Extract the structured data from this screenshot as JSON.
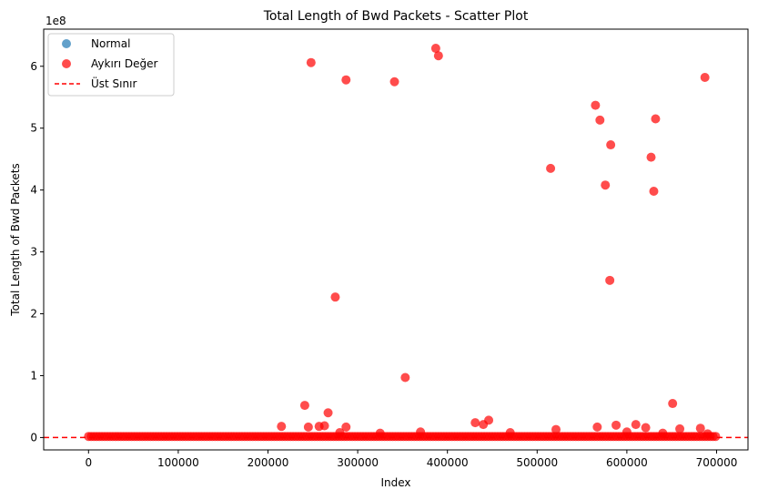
{
  "chart_data": {
    "type": "scatter",
    "title": "Total Length of Bwd Packets - Scatter Plot",
    "xlabel": "Index",
    "ylabel": "Total Length of Bwd Packets",
    "y_offset_label": "1e8",
    "y_scale": 100000000,
    "xlim": [
      -50000,
      735000
    ],
    "ylim": [
      -20000000,
      660000000
    ],
    "x_ticks": [
      0,
      100000,
      200000,
      300000,
      400000,
      500000,
      600000,
      700000
    ],
    "x_tick_labels": [
      "0",
      "100000",
      "200000",
      "300000",
      "400000",
      "500000",
      "600000",
      "700000"
    ],
    "y_ticks": [
      0,
      100000000,
      200000000,
      300000000,
      400000000,
      500000000,
      600000000
    ],
    "y_tick_labels": [
      "0",
      "1",
      "2",
      "3",
      "4",
      "5",
      "6"
    ],
    "grid": false,
    "legend_position": "upper-left",
    "colors": {
      "normal": "#1f77b4",
      "outlier": "#ff0000",
      "limit": "#ff0000"
    },
    "series": [
      {
        "name": "Normal",
        "kind": "scatter",
        "points": []
      },
      {
        "name": "Aykırı Değer",
        "kind": "scatter",
        "band": {
          "x_range": [
            0,
            700000
          ],
          "y": 0
        },
        "points": [
          [
            248000,
            606000000
          ],
          [
            287000,
            578000000
          ],
          [
            341000,
            575000000
          ],
          [
            387000,
            629000000
          ],
          [
            390000,
            617000000
          ],
          [
            687000,
            582000000
          ],
          [
            565000,
            537000000
          ],
          [
            570000,
            513000000
          ],
          [
            632000,
            515000000
          ],
          [
            582000,
            473000000
          ],
          [
            627000,
            453000000
          ],
          [
            515000,
            435000000
          ],
          [
            576000,
            408000000
          ],
          [
            630000,
            398000000
          ],
          [
            581000,
            254000000
          ],
          [
            275000,
            227000000
          ],
          [
            353000,
            97000000
          ],
          [
            651000,
            55000000
          ],
          [
            241000,
            52000000
          ],
          [
            267000,
            40000000
          ],
          [
            446000,
            28000000
          ],
          [
            431000,
            24000000
          ],
          [
            440000,
            21000000
          ],
          [
            588000,
            20000000
          ],
          [
            610000,
            21000000
          ],
          [
            621000,
            16000000
          ],
          [
            257000,
            18000000
          ],
          [
            263000,
            19000000
          ],
          [
            215000,
            18000000
          ],
          [
            245000,
            17000000
          ],
          [
            287000,
            17000000
          ],
          [
            567000,
            17000000
          ],
          [
            659000,
            14000000
          ],
          [
            682000,
            15000000
          ],
          [
            521000,
            13000000
          ],
          [
            370000,
            9000000
          ],
          [
            470000,
            8000000
          ],
          [
            280000,
            8000000
          ],
          [
            325000,
            7000000
          ],
          [
            600000,
            9000000
          ],
          [
            640000,
            7000000
          ],
          [
            690000,
            6000000
          ]
        ]
      },
      {
        "name": "Üst Sınır",
        "kind": "hline",
        "y": 0
      }
    ]
  }
}
